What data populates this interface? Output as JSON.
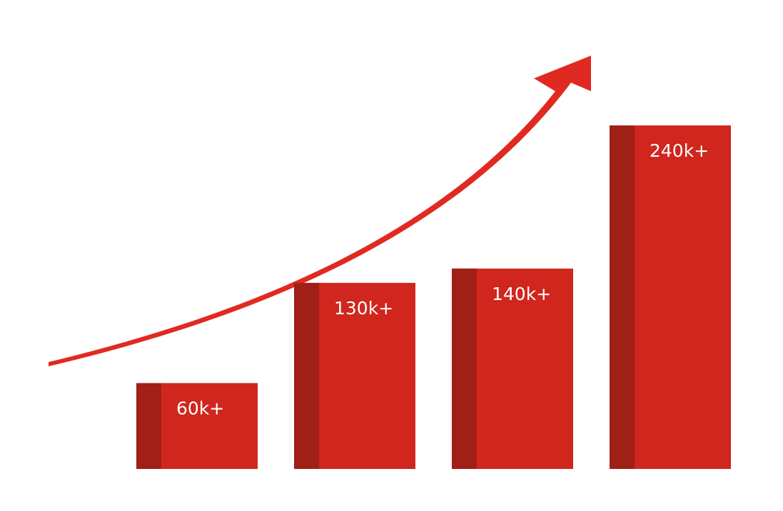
{
  "chart_data": {
    "type": "bar",
    "values": [
      60,
      130,
      140,
      240
    ],
    "data_labels": [
      "60k+",
      "130k+",
      "140k+",
      "240k+"
    ],
    "title": "",
    "xlabel": "",
    "ylabel": "",
    "grid": false,
    "legend": "none",
    "trend_arrow": true
  },
  "colors": {
    "bar_face": "#d0261e",
    "bar_shade": "#a01f17",
    "arrow": "#e02a21",
    "label_text": "#ffffff",
    "background": "#ffffff"
  }
}
